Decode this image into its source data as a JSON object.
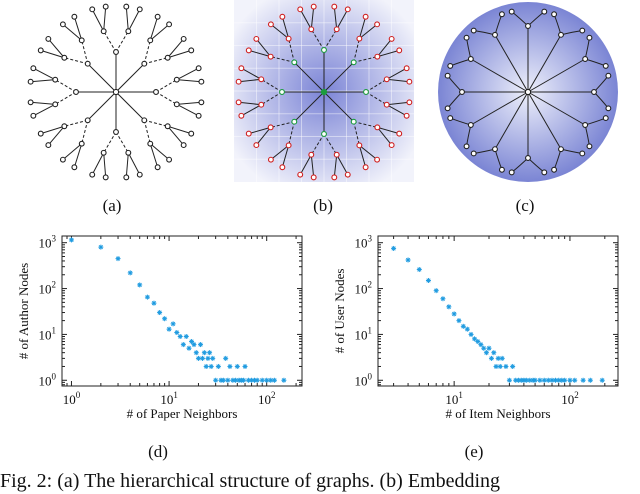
{
  "panels": {
    "a": {
      "label": "(a)"
    },
    "b": {
      "label": "(b)"
    },
    "c": {
      "label": "(c)"
    },
    "d": {
      "label": "(d)"
    },
    "e": {
      "label": "(e)"
    }
  },
  "caption": "Fig. 2: (a) The hierarchical structure of graphs. (b) Embedding",
  "chart_data": [
    {
      "type": "scatter",
      "xlabel": "# of Paper Neighbors",
      "ylabel": "# of Author Nodes",
      "xscale": "log",
      "yscale": "log",
      "xlim": [
        0.8,
        230
      ],
      "ylim": [
        0.75,
        1400
      ],
      "xticks": [
        "10^0",
        "10^1",
        "10^2"
      ],
      "yticks": [
        "10^0",
        "10^1",
        "10^2",
        "10^3"
      ],
      "marker_color": "#1f9be0",
      "x": [
        1,
        2,
        3,
        4,
        5,
        6,
        7,
        8,
        9,
        10,
        11,
        12,
        13,
        14,
        15,
        16,
        17,
        18,
        19,
        20,
        21,
        22,
        23,
        24,
        25,
        26,
        27,
        28,
        30,
        32,
        34,
        36,
        38,
        40,
        42,
        45,
        48,
        50,
        52,
        55,
        58,
        60,
        65,
        70,
        75,
        80,
        90,
        100,
        110,
        120,
        150
      ],
      "y": [
        1150,
        800,
        450,
        220,
        120,
        65,
        48,
        30,
        22,
        13,
        17,
        11,
        9,
        6,
        9,
        5,
        7,
        6,
        4,
        3,
        6,
        3,
        4,
        2,
        3,
        4,
        2,
        3,
        1,
        2,
        1,
        1,
        3,
        1,
        2,
        1,
        1,
        2,
        1,
        1,
        1,
        2,
        1,
        1,
        1,
        1,
        1,
        1,
        1,
        1,
        1
      ]
    },
    {
      "type": "scatter",
      "xlabel": "# of Item Neighbors",
      "ylabel": "# of User Nodes",
      "xscale": "log",
      "yscale": "log",
      "xlim": [
        2.2,
        260
      ],
      "ylim": [
        0.75,
        1400
      ],
      "xticks": [
        "10^1",
        "10^2"
      ],
      "yticks": [
        "10^0",
        "10^1",
        "10^2",
        "10^3"
      ],
      "marker_color": "#1f9be0",
      "x": [
        3,
        4,
        5,
        6,
        7,
        8,
        9,
        10,
        11,
        12,
        13,
        14,
        15,
        16,
        17,
        18,
        19,
        20,
        21,
        22,
        23,
        24,
        25,
        26,
        28,
        30,
        32,
        34,
        36,
        38,
        40,
        42,
        45,
        48,
        50,
        55,
        60,
        65,
        70,
        75,
        80,
        85,
        90,
        100,
        110,
        130,
        150,
        190
      ],
      "y": [
        750,
        420,
        260,
        150,
        90,
        60,
        40,
        28,
        20,
        15,
        13,
        10,
        8,
        7,
        6,
        5,
        4,
        5,
        3,
        4,
        2,
        3,
        2,
        3,
        2,
        1,
        2,
        1,
        1,
        1,
        1,
        1,
        1,
        1,
        1,
        1,
        1,
        1,
        1,
        1,
        1,
        1,
        1,
        1,
        1,
        1,
        1,
        1
      ]
    }
  ]
}
